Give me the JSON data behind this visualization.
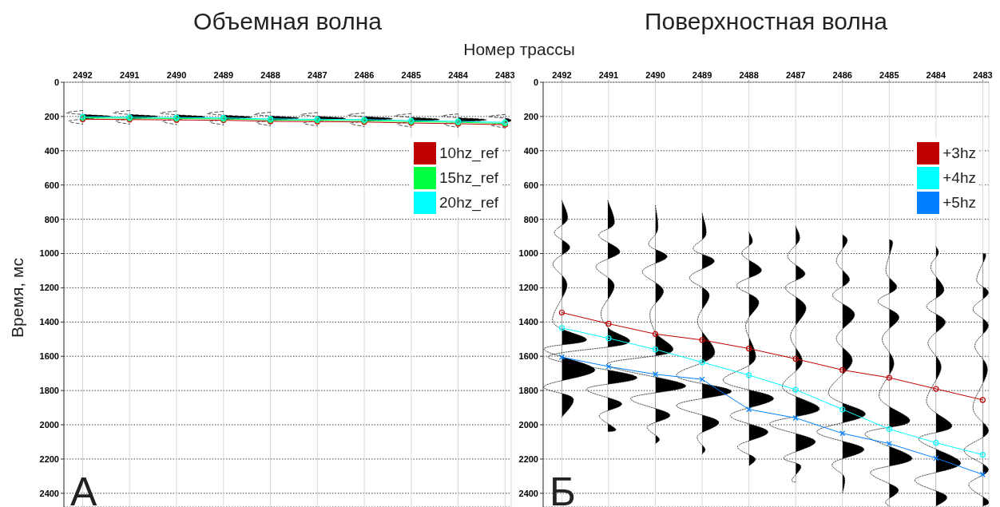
{
  "chart_data": [
    {
      "type": "line",
      "title": "Объемная волна",
      "xlabel": "Номер трассы",
      "ylabel": "Время, мс",
      "annotations": [
        "А"
      ],
      "xlim": [
        2492.4,
        2482.87
      ],
      "xticks": [
        2492,
        2491,
        2490,
        2489,
        2488,
        2487,
        2486,
        2485,
        2484,
        2483
      ],
      "ylim": [
        2480,
        0
      ],
      "yticks": [
        0,
        200,
        400,
        600,
        800,
        1000,
        1200,
        1400,
        1600,
        1800,
        2000,
        2200,
        2400
      ],
      "grid": true,
      "legend": "top right",
      "series": [
        {
          "type": "area",
          "color": "#000000",
          "line_style": "dashed",
          "x": [
            2492,
            2492.35,
            2492,
            2491.4,
            2492,
            2492.3,
            2492
          ],
          "values": [
            165,
            178,
            188,
            200,
            215,
            228,
            245
          ]
        },
        {
          "type": "area",
          "color": "#000000",
          "line_style": "dashed",
          "x": [
            2491,
            2491.35,
            2491,
            2490.4,
            2491,
            2491.3,
            2491
          ],
          "values": [
            165,
            178,
            188,
            200,
            215,
            228,
            245
          ]
        },
        {
          "type": "area",
          "color": "#000000",
          "line_style": "dashed",
          "x": [
            2490,
            2490.35,
            2490,
            2489.4,
            2490,
            2490.3,
            2490
          ],
          "values": [
            168,
            180,
            190,
            202,
            217,
            230,
            247
          ]
        },
        {
          "type": "area",
          "color": "#000000",
          "line_style": "dashed",
          "x": [
            2489,
            2489.35,
            2489,
            2488.4,
            2489,
            2489.3,
            2489
          ],
          "values": [
            170,
            182,
            192,
            204,
            219,
            232,
            249
          ]
        },
        {
          "type": "area",
          "color": "#000000",
          "line_style": "dashed",
          "x": [
            2488,
            2488.35,
            2488,
            2487.4,
            2488,
            2488.3,
            2488
          ],
          "values": [
            175,
            187,
            197,
            209,
            224,
            237,
            254
          ]
        },
        {
          "type": "area",
          "color": "#000000",
          "line_style": "dashed",
          "x": [
            2487,
            2487.35,
            2487,
            2486.4,
            2487,
            2487.3,
            2487
          ],
          "values": [
            177,
            189,
            199,
            211,
            226,
            239,
            256
          ]
        },
        {
          "type": "area",
          "color": "#000000",
          "line_style": "dashed",
          "x": [
            2486,
            2486.35,
            2486,
            2485.4,
            2486,
            2486.3,
            2486
          ],
          "values": [
            179,
            191,
            201,
            213,
            228,
            241,
            258
          ]
        },
        {
          "type": "area",
          "color": "#000000",
          "line_style": "dashed",
          "x": [
            2485,
            2485.35,
            2485,
            2484.4,
            2485,
            2485.3,
            2485
          ],
          "values": [
            183,
            195,
            205,
            217,
            232,
            245,
            262
          ]
        },
        {
          "type": "area",
          "color": "#000000",
          "line_style": "dashed",
          "x": [
            2484,
            2484.35,
            2484,
            2483.4,
            2484,
            2484.3,
            2484
          ],
          "values": [
            185,
            197,
            207,
            219,
            234,
            247,
            264
          ]
        },
        {
          "type": "area",
          "color": "#000000",
          "line_style": "dashed",
          "x": [
            2483,
            2483.35,
            2483,
            2482.87,
            2483,
            2483.3,
            2483
          ],
          "values": [
            188,
            200,
            210,
            222,
            237,
            250,
            267
          ]
        },
        {
          "name": "10hz_ref",
          "color": "#c00000",
          "marker": "circle",
          "line_style": "solid",
          "x": [
            2492,
            2491,
            2490,
            2489,
            2488,
            2487,
            2486,
            2485,
            2484,
            2483
          ],
          "values": [
            216,
            218,
            220,
            222,
            228,
            230,
            232,
            238,
            242,
            248
          ]
        },
        {
          "name": "15hz_ref",
          "color": "#00ff40",
          "marker": "circle",
          "line_style": "solid",
          "x": [
            2492,
            2491,
            2490,
            2489,
            2488,
            2487,
            2486,
            2485,
            2484,
            2483
          ],
          "values": [
            208,
            210,
            212,
            214,
            220,
            222,
            224,
            230,
            234,
            240
          ]
        },
        {
          "name": "20hz_ref",
          "color": "#00ffff",
          "marker": "circle",
          "line_style": "solid",
          "x": [
            2492,
            2491,
            2490,
            2489,
            2488,
            2487,
            2486,
            2485,
            2484,
            2483
          ],
          "values": [
            202,
            204,
            206,
            208,
            214,
            216,
            218,
            224,
            228,
            234
          ]
        }
      ]
    },
    {
      "type": "line",
      "title": "Поверхностная волна",
      "annotations": [
        "Б"
      ],
      "xlim": [
        2492.4,
        2482.87
      ],
      "xticks": [
        2492,
        2491,
        2490,
        2489,
        2488,
        2487,
        2486,
        2485,
        2484,
        2483
      ],
      "ylim": [
        2480,
        0
      ],
      "yticks": [
        0,
        200,
        400,
        600,
        800,
        1000,
        1200,
        1400,
        1600,
        1800,
        2000,
        2200,
        2400
      ],
      "grid": true,
      "legend": "top right",
      "series": [
        {
          "type": "area",
          "color": "#000000",
          "line_style": "dotted",
          "x": [
            2492,
            2491.88,
            2492.16,
            2491.83,
            2492.19,
            2491.89,
            2492.19,
            2491.47,
            2492.38,
            2491.29,
            2492.38,
            2491.76,
            2492
          ],
          "values": [
            690,
            800,
            880,
            965,
            1060,
            1185,
            1400,
            1505,
            1560,
            1680,
            1775,
            1845,
            1955
          ]
        },
        {
          "type": "area",
          "color": "#000000",
          "line_style": "dotted",
          "x": [
            2491.02,
            2490.88,
            2491.21,
            2490.76,
            2491.27,
            2490.88,
            2491.16,
            2491,
            2490.6,
            2492.3,
            2490.4,
            2491.47,
            2490.72,
            2491.2,
            2490.85,
            2491
          ],
          "values": [
            690,
            825,
            895,
            990,
            1075,
            1185,
            1340,
            1437,
            1525,
            1605,
            1720,
            1790,
            1875,
            1945,
            2025,
            2040
          ]
        },
        {
          "type": "area",
          "color": "#000000",
          "line_style": "dotted",
          "x": [
            2490,
            2489.95,
            2490.14,
            2489.75,
            2490.28,
            2489.83,
            2490.11,
            2490,
            2489.66,
            2491.04,
            2489.35,
            2490.53,
            2489.69,
            2490.17,
            2489.92,
            2490
          ],
          "values": [
            720,
            860,
            950,
            1020,
            1105,
            1215,
            1340,
            1461,
            1575,
            1650,
            1770,
            1845,
            1940,
            2010,
            2080,
            2110
          ]
        },
        {
          "type": "area",
          "color": "#000000",
          "line_style": "dotted",
          "x": [
            2489,
            2488.92,
            2489.19,
            2488.74,
            2489.27,
            2488.85,
            2489.1,
            2488.74,
            2489.55,
            2488.37,
            2489.55,
            2488.65,
            2489.1,
            2488.94,
            2489
          ],
          "values": [
            765,
            890,
            975,
            1045,
            1140,
            1240,
            1400,
            1590,
            1715,
            1805,
            1885,
            1980,
            2065,
            2140,
            2170
          ]
        },
        {
          "type": "area",
          "color": "#000000",
          "line_style": "dotted",
          "x": [
            2488,
            2487.93,
            2488.15,
            2487.73,
            2488.26,
            2487.79,
            2488.07,
            2487.87,
            2488.55,
            2487.47,
            2488.4,
            2487.59,
            2488.24,
            2487.87,
            2488
          ],
          "values": [
            875,
            935,
            1005,
            1100,
            1185,
            1280,
            1420,
            1620,
            1745,
            1845,
            1945,
            2040,
            2125,
            2195,
            2240
          ]
        },
        {
          "type": "area",
          "color": "#000000",
          "line_style": "dotted",
          "x": [
            2487,
            2486.92,
            2487.17,
            2486.8,
            2487.22,
            2486.78,
            2487.11,
            2486.86,
            2487.28,
            2486.49,
            2487.56,
            2486.58,
            2487.25,
            2486.89,
            2487.08,
            2487
          ],
          "values": [
            840,
            920,
            1020,
            1120,
            1200,
            1315,
            1480,
            1635,
            1785,
            1910,
            1995,
            2095,
            2190,
            2240,
            2320,
            2335
          ]
        },
        {
          "type": "area",
          "color": "#000000",
          "line_style": "dotted",
          "x": [
            2486,
            2485.9,
            2486.13,
            2485.85,
            2486.21,
            2485.74,
            2486.13,
            2485.79,
            2486.3,
            2485.51,
            2486.55,
            2485.54,
            2486.21,
            2485.96,
            2486
          ],
          "values": [
            890,
            930,
            1045,
            1155,
            1245,
            1355,
            1495,
            1630,
            1820,
            1940,
            2040,
            2140,
            2225,
            2305,
            2400
          ]
        },
        {
          "type": "area",
          "color": "#000000",
          "line_style": "dotted",
          "x": [
            2485,
            2484.93,
            2485.07,
            2484.84,
            2485.24,
            2484.79,
            2485.15,
            2484.9,
            2485.21,
            2484.56,
            2485.52,
            2484.51,
            2485.4,
            2484.81,
            2485.07,
            2485
          ],
          "values": [
            920,
            945,
            1105,
            1200,
            1280,
            1370,
            1495,
            1645,
            1840,
            1980,
            2055,
            2195,
            2275,
            2375,
            2445,
            2475
          ]
        },
        {
          "type": "area",
          "color": "#000000",
          "line_style": "dotted",
          "x": [
            2484,
            2483.95,
            2484.11,
            2483.83,
            2484.2,
            2483.8,
            2484.17,
            2483.89,
            2484.2,
            2483.66,
            2484.37,
            2483.47,
            2484.45,
            2483.78,
            2484
          ],
          "values": [
            960,
            1000,
            1085,
            1215,
            1310,
            1400,
            1520,
            1665,
            1870,
            2010,
            2085,
            2225,
            2320,
            2415,
            2475
          ]
        },
        {
          "type": "area",
          "color": "#000000",
          "line_style": "dotted",
          "x": [
            2483,
            2482.94,
            2483.13,
            2482.88,
            2483.21,
            2482.88,
            2483.17,
            2482.9,
            2483.21,
            2482.88,
            2483.4,
            2482.88,
            2483.3,
            2482.88,
            2483
          ],
          "values": [
            1000,
            1020,
            1155,
            1230,
            1325,
            1420,
            1540,
            1680,
            1900,
            2040,
            2150,
            2260,
            2350,
            2445,
            2475
          ]
        },
        {
          "name": "+3hz",
          "color": "#c00000",
          "marker": "circle",
          "line_style": "solid",
          "x": [
            2492,
            2491,
            2490,
            2489,
            2488,
            2487,
            2486,
            2485,
            2484,
            2483
          ],
          "values": [
            1345,
            1410,
            1470,
            1505,
            1555,
            1615,
            1680,
            1725,
            1790,
            1855
          ]
        },
        {
          "name": "+4hz",
          "color": "#00ffff",
          "marker": "circle",
          "line_style": "solid",
          "x": [
            2492,
            2491,
            2490,
            2489,
            2488,
            2487,
            2486,
            2485,
            2484,
            2483
          ],
          "values": [
            1435,
            1495,
            1560,
            1635,
            1710,
            1795,
            1910,
            2025,
            2105,
            2175
          ]
        },
        {
          "name": "+5hz",
          "color": "#0080ff",
          "marker": "cross",
          "line_style": "solid",
          "x": [
            2492,
            2491,
            2490,
            2489,
            2488,
            2487,
            2486,
            2485,
            2484,
            2483
          ],
          "values": [
            1605,
            1660,
            1705,
            1735,
            1910,
            1960,
            2050,
            2110,
            2195,
            2290
          ]
        }
      ]
    }
  ]
}
